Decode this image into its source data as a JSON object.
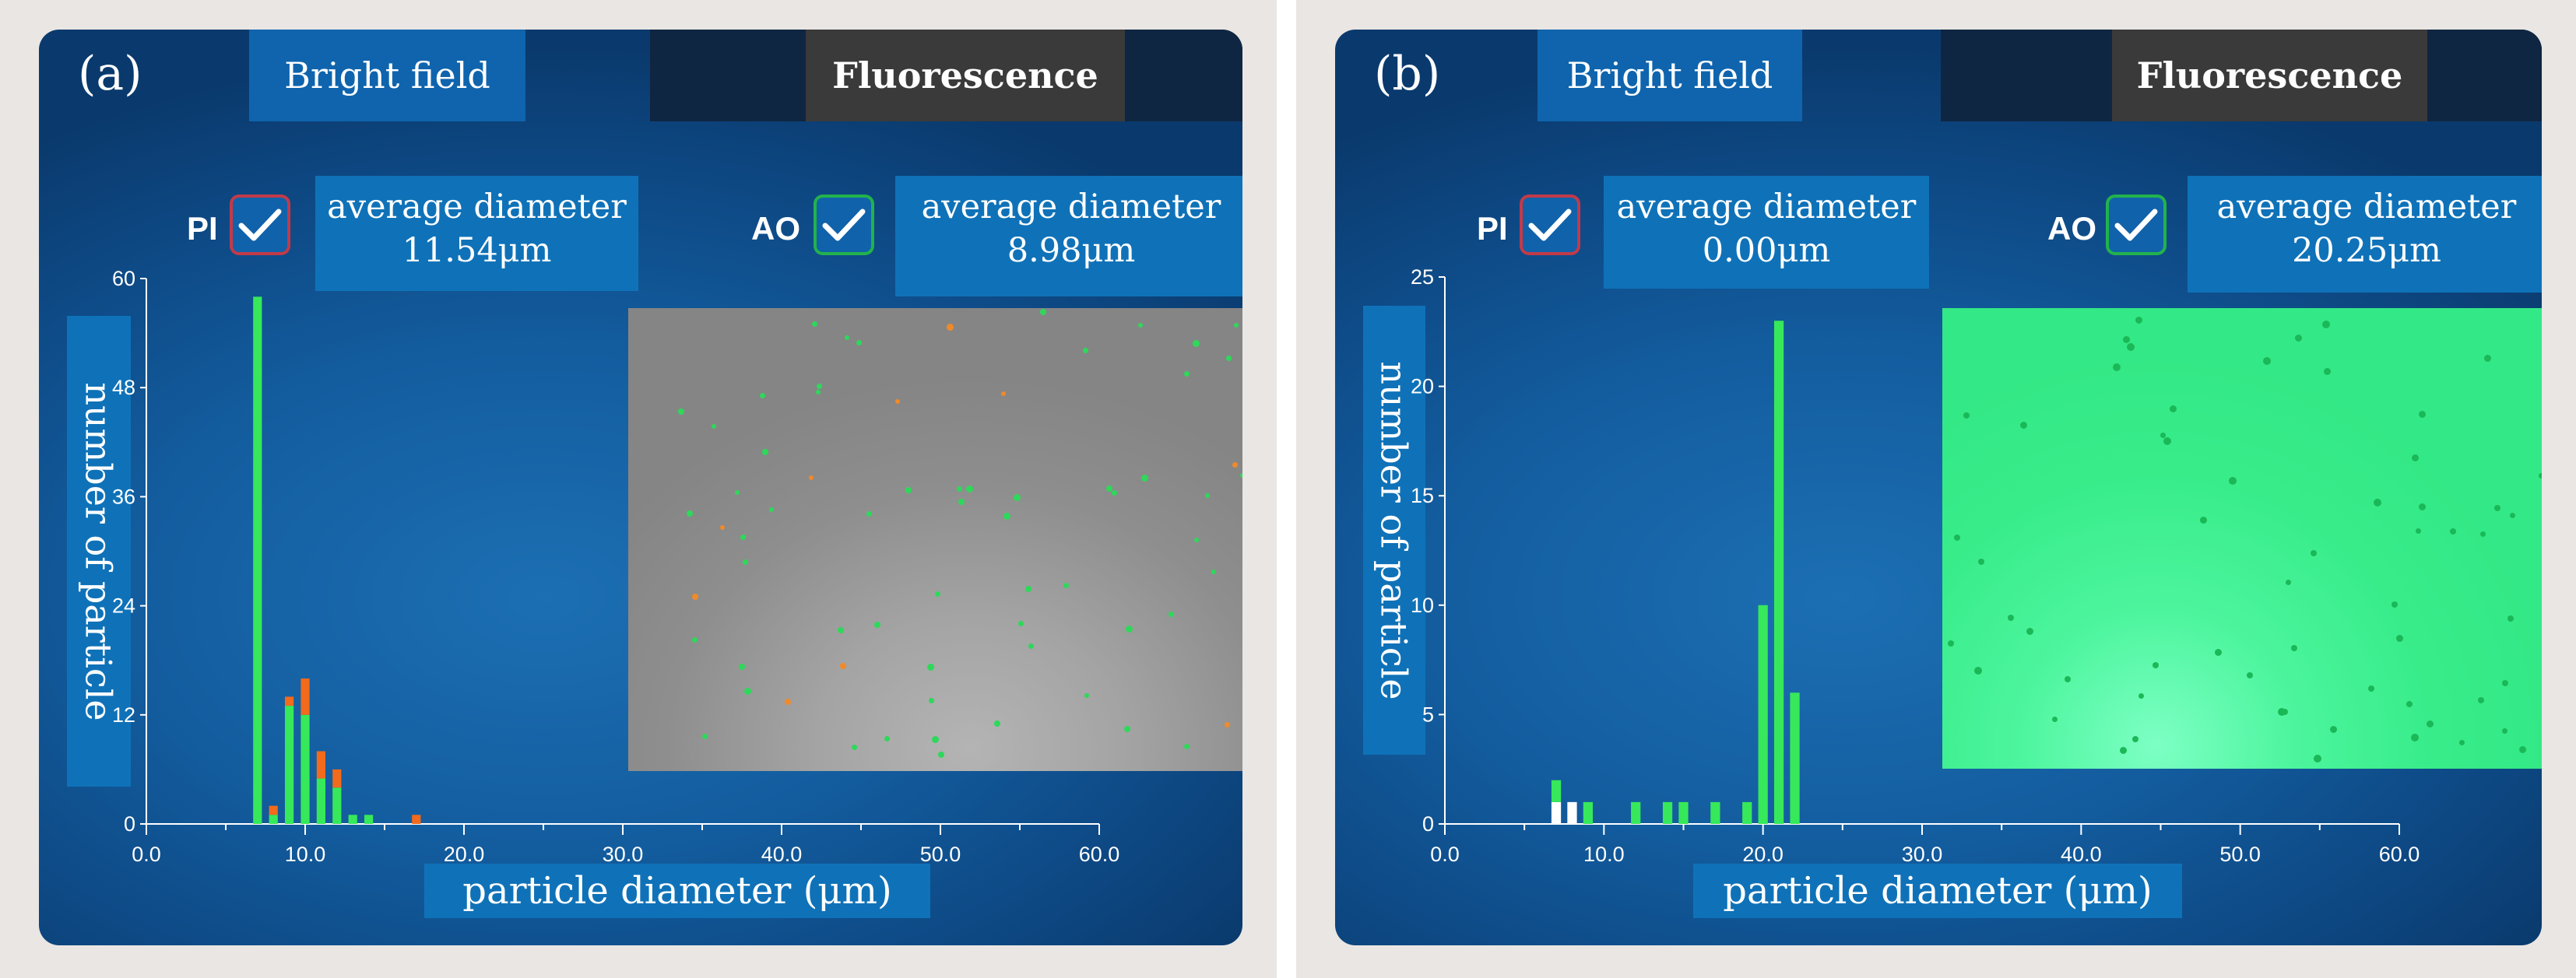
{
  "panels": [
    {
      "id": "a",
      "label": "(a)",
      "tabs": {
        "bright_field": "Bright field",
        "fluorescence": "Fluorescence"
      },
      "pi": {
        "label": "PI",
        "avg_title": "average diameter",
        "avg_value": "11.54μm"
      },
      "ao": {
        "label": "AO",
        "avg_title": "average diameter",
        "avg_value": "8.98μm"
      },
      "ylabel": "number of particle",
      "xlabel": "particle diameter (μm)"
    },
    {
      "id": "b",
      "label": "(b)",
      "tabs": {
        "bright_field": "Bright field",
        "fluorescence": "Fluorescence"
      },
      "pi": {
        "label": "PI",
        "avg_title": "average diameter",
        "avg_value": "0.00μm"
      },
      "ao": {
        "label": "AO",
        "avg_title": "average diameter",
        "avg_value": "20.25μm"
      },
      "ylabel": "number of particle",
      "xlabel": "particle diameter (μm)"
    }
  ],
  "chart_data": [
    {
      "type": "bar",
      "title": "",
      "xlabel": "particle diameter (μm)",
      "ylabel": "number of particle",
      "xlim": [
        0,
        60
      ],
      "ylim": [
        0,
        60
      ],
      "xticks": [
        "0.0",
        "10.0",
        "20.0",
        "30.0",
        "40.0",
        "50.0",
        "60.0"
      ],
      "yticks": [
        "0",
        "12",
        "24",
        "36",
        "48",
        "60"
      ],
      "stacked": true,
      "colors": {
        "AO (green)": "#37e85a",
        "PI (orange)": "#f26a1b"
      },
      "series": [
        {
          "name": "AO (green)",
          "x": [
            7,
            8,
            9,
            10,
            11,
            12,
            13,
            14,
            17
          ],
          "values": [
            58,
            1,
            13,
            12,
            5,
            4,
            1,
            1,
            0
          ]
        },
        {
          "name": "PI (orange)",
          "x": [
            7,
            8,
            9,
            10,
            11,
            12,
            13,
            14,
            17
          ],
          "values": [
            0,
            1,
            1,
            4,
            3,
            2,
            0,
            0,
            1
          ]
        }
      ]
    },
    {
      "type": "bar",
      "title": "",
      "xlabel": "particle diameter (μm)",
      "ylabel": "number of particle",
      "xlim": [
        0,
        60
      ],
      "ylim": [
        0,
        25
      ],
      "xticks": [
        "0.0",
        "10.0",
        "20.0",
        "30.0",
        "40.0",
        "50.0",
        "60.0"
      ],
      "yticks": [
        "0",
        "5",
        "10",
        "15",
        "20",
        "25"
      ],
      "stacked": true,
      "colors": {
        "AO (green)": "#37e85a",
        "Other (white)": "#ffffff"
      },
      "series": [
        {
          "name": "Other (white)",
          "x": [
            7,
            8,
            9,
            12,
            14,
            15,
            17,
            19,
            20,
            21,
            22
          ],
          "values": [
            1,
            1,
            0,
            0,
            0,
            0,
            0,
            0,
            0,
            0,
            0
          ]
        },
        {
          "name": "AO (green)",
          "x": [
            7,
            8,
            9,
            12,
            14,
            15,
            17,
            19,
            20,
            21,
            22
          ],
          "values": [
            1,
            0,
            1,
            1,
            1,
            1,
            1,
            1,
            10,
            23,
            6
          ]
        }
      ]
    }
  ],
  "micrographs": {
    "a": {
      "green_dots": 58,
      "orange_dots": 10,
      "dot_green": "#2ed85a",
      "dot_orange": "#f08a2a"
    },
    "b": {
      "dark_dots": 60,
      "dot_dark": "#1bb857"
    }
  },
  "colors": {
    "screen_blue": "#135d9f",
    "label_box": "#0f72b8",
    "tab_dark": "#0f2642",
    "pi_checkbox": "#c23a4a",
    "ao_checkbox": "#22b24c"
  }
}
